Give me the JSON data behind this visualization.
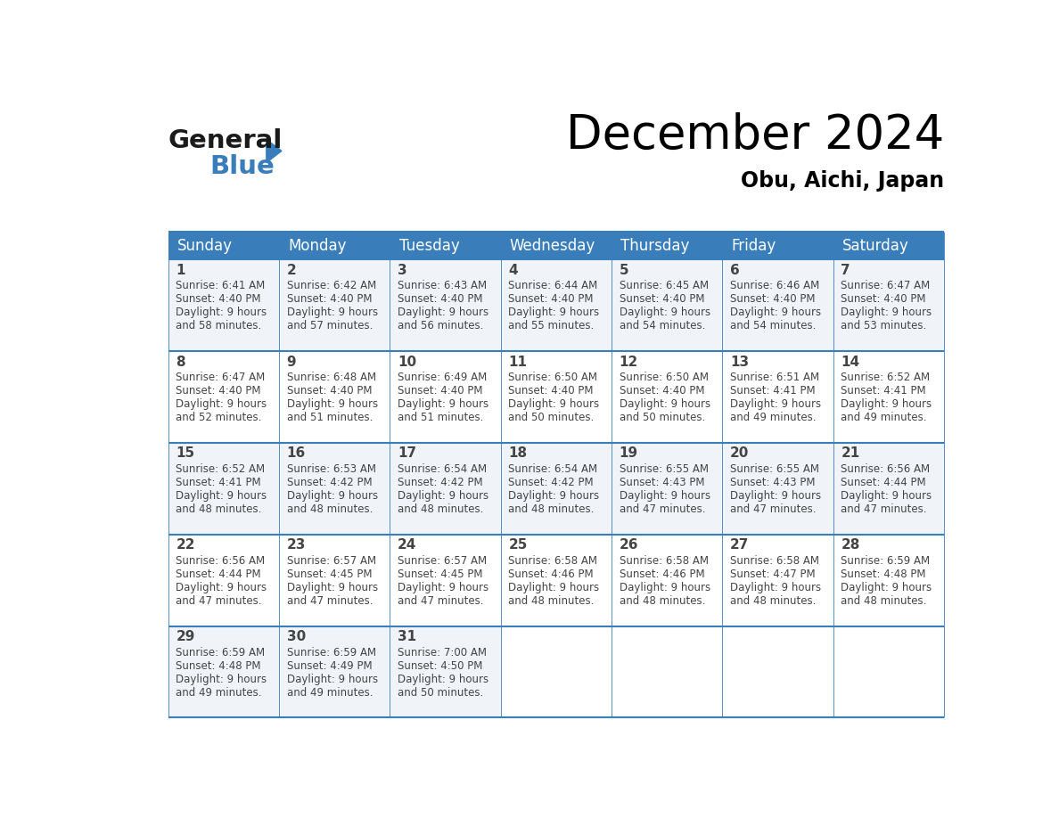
{
  "title": "December 2024",
  "subtitle": "Obu, Aichi, Japan",
  "header_bg_color": "#3A7DBB",
  "header_text_color": "#FFFFFF",
  "cell_bg_color_light": "#F0F4F8",
  "cell_bg_color_white": "#FFFFFF",
  "day_names": [
    "Sunday",
    "Monday",
    "Tuesday",
    "Wednesday",
    "Thursday",
    "Friday",
    "Saturday"
  ],
  "days": [
    {
      "day": 1,
      "col": 0,
      "row": 0,
      "sunrise": "6:41 AM",
      "sunset": "4:40 PM",
      "daylight_hours": 9,
      "daylight_min": 58
    },
    {
      "day": 2,
      "col": 1,
      "row": 0,
      "sunrise": "6:42 AM",
      "sunset": "4:40 PM",
      "daylight_hours": 9,
      "daylight_min": 57
    },
    {
      "day": 3,
      "col": 2,
      "row": 0,
      "sunrise": "6:43 AM",
      "sunset": "4:40 PM",
      "daylight_hours": 9,
      "daylight_min": 56
    },
    {
      "day": 4,
      "col": 3,
      "row": 0,
      "sunrise": "6:44 AM",
      "sunset": "4:40 PM",
      "daylight_hours": 9,
      "daylight_min": 55
    },
    {
      "day": 5,
      "col": 4,
      "row": 0,
      "sunrise": "6:45 AM",
      "sunset": "4:40 PM",
      "daylight_hours": 9,
      "daylight_min": 54
    },
    {
      "day": 6,
      "col": 5,
      "row": 0,
      "sunrise": "6:46 AM",
      "sunset": "4:40 PM",
      "daylight_hours": 9,
      "daylight_min": 54
    },
    {
      "day": 7,
      "col": 6,
      "row": 0,
      "sunrise": "6:47 AM",
      "sunset": "4:40 PM",
      "daylight_hours": 9,
      "daylight_min": 53
    },
    {
      "day": 8,
      "col": 0,
      "row": 1,
      "sunrise": "6:47 AM",
      "sunset": "4:40 PM",
      "daylight_hours": 9,
      "daylight_min": 52
    },
    {
      "day": 9,
      "col": 1,
      "row": 1,
      "sunrise": "6:48 AM",
      "sunset": "4:40 PM",
      "daylight_hours": 9,
      "daylight_min": 51
    },
    {
      "day": 10,
      "col": 2,
      "row": 1,
      "sunrise": "6:49 AM",
      "sunset": "4:40 PM",
      "daylight_hours": 9,
      "daylight_min": 51
    },
    {
      "day": 11,
      "col": 3,
      "row": 1,
      "sunrise": "6:50 AM",
      "sunset": "4:40 PM",
      "daylight_hours": 9,
      "daylight_min": 50
    },
    {
      "day": 12,
      "col": 4,
      "row": 1,
      "sunrise": "6:50 AM",
      "sunset": "4:40 PM",
      "daylight_hours": 9,
      "daylight_min": 50
    },
    {
      "day": 13,
      "col": 5,
      "row": 1,
      "sunrise": "6:51 AM",
      "sunset": "4:41 PM",
      "daylight_hours": 9,
      "daylight_min": 49
    },
    {
      "day": 14,
      "col": 6,
      "row": 1,
      "sunrise": "6:52 AM",
      "sunset": "4:41 PM",
      "daylight_hours": 9,
      "daylight_min": 49
    },
    {
      "day": 15,
      "col": 0,
      "row": 2,
      "sunrise": "6:52 AM",
      "sunset": "4:41 PM",
      "daylight_hours": 9,
      "daylight_min": 48
    },
    {
      "day": 16,
      "col": 1,
      "row": 2,
      "sunrise": "6:53 AM",
      "sunset": "4:42 PM",
      "daylight_hours": 9,
      "daylight_min": 48
    },
    {
      "day": 17,
      "col": 2,
      "row": 2,
      "sunrise": "6:54 AM",
      "sunset": "4:42 PM",
      "daylight_hours": 9,
      "daylight_min": 48
    },
    {
      "day": 18,
      "col": 3,
      "row": 2,
      "sunrise": "6:54 AM",
      "sunset": "4:42 PM",
      "daylight_hours": 9,
      "daylight_min": 48
    },
    {
      "day": 19,
      "col": 4,
      "row": 2,
      "sunrise": "6:55 AM",
      "sunset": "4:43 PM",
      "daylight_hours": 9,
      "daylight_min": 47
    },
    {
      "day": 20,
      "col": 5,
      "row": 2,
      "sunrise": "6:55 AM",
      "sunset": "4:43 PM",
      "daylight_hours": 9,
      "daylight_min": 47
    },
    {
      "day": 21,
      "col": 6,
      "row": 2,
      "sunrise": "6:56 AM",
      "sunset": "4:44 PM",
      "daylight_hours": 9,
      "daylight_min": 47
    },
    {
      "day": 22,
      "col": 0,
      "row": 3,
      "sunrise": "6:56 AM",
      "sunset": "4:44 PM",
      "daylight_hours": 9,
      "daylight_min": 47
    },
    {
      "day": 23,
      "col": 1,
      "row": 3,
      "sunrise": "6:57 AM",
      "sunset": "4:45 PM",
      "daylight_hours": 9,
      "daylight_min": 47
    },
    {
      "day": 24,
      "col": 2,
      "row": 3,
      "sunrise": "6:57 AM",
      "sunset": "4:45 PM",
      "daylight_hours": 9,
      "daylight_min": 47
    },
    {
      "day": 25,
      "col": 3,
      "row": 3,
      "sunrise": "6:58 AM",
      "sunset": "4:46 PM",
      "daylight_hours": 9,
      "daylight_min": 48
    },
    {
      "day": 26,
      "col": 4,
      "row": 3,
      "sunrise": "6:58 AM",
      "sunset": "4:46 PM",
      "daylight_hours": 9,
      "daylight_min": 48
    },
    {
      "day": 27,
      "col": 5,
      "row": 3,
      "sunrise": "6:58 AM",
      "sunset": "4:47 PM",
      "daylight_hours": 9,
      "daylight_min": 48
    },
    {
      "day": 28,
      "col": 6,
      "row": 3,
      "sunrise": "6:59 AM",
      "sunset": "4:48 PM",
      "daylight_hours": 9,
      "daylight_min": 48
    },
    {
      "day": 29,
      "col": 0,
      "row": 4,
      "sunrise": "6:59 AM",
      "sunset": "4:48 PM",
      "daylight_hours": 9,
      "daylight_min": 49
    },
    {
      "day": 30,
      "col": 1,
      "row": 4,
      "sunrise": "6:59 AM",
      "sunset": "4:49 PM",
      "daylight_hours": 9,
      "daylight_min": 49
    },
    {
      "day": 31,
      "col": 2,
      "row": 4,
      "sunrise": "7:00 AM",
      "sunset": "4:50 PM",
      "daylight_hours": 9,
      "daylight_min": 50
    }
  ],
  "num_rows": 5,
  "num_cols": 7,
  "logo_color_black": "#1a1a1a",
  "logo_color_blue": "#3A7DBB",
  "cell_text_color": "#444444",
  "row_divider_color": "#3A7DBB",
  "title_fontsize": 38,
  "subtitle_fontsize": 17,
  "header_fontsize": 12,
  "daynum_fontsize": 11,
  "cell_fontsize": 8.5
}
